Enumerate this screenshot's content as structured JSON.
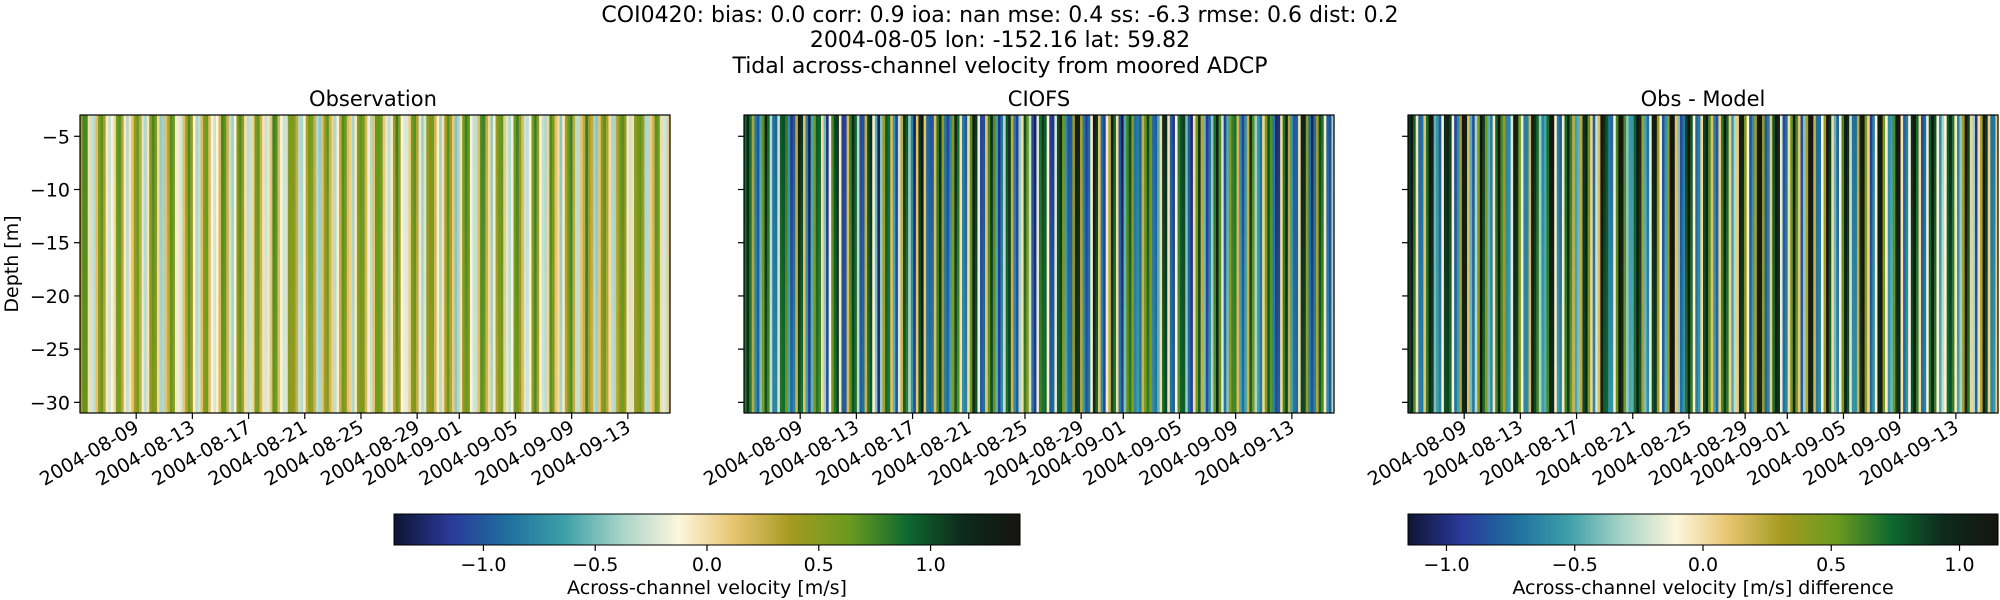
{
  "header": {
    "line1": "COI0420: bias: 0.0  corr: 0.9  ioa: nan  mse: 0.4  ss: -6.3  rmse: 0.6  dist: 0.2",
    "line2": "2004-08-05 lon: -152.16 lat: 59.82",
    "line3": "Tidal across-channel velocity from moored ADCP"
  },
  "colors": {
    "colormap_stops": [
      "#0e1433",
      "#2a3a9a",
      "#1f6f9e",
      "#3ea0a8",
      "#a8d4c8",
      "#fdf6dc",
      "#e6c46e",
      "#a39a22",
      "#6b9a1e",
      "#0f6a30",
      "#0d2a1c",
      "#15150f"
    ]
  },
  "chart_data": [
    {
      "type": "heatmap",
      "title": "Observation",
      "ylabel": "Depth [m]",
      "xlabel": "",
      "ylim": [
        -31,
        -3
      ],
      "yticks": [
        "−5",
        "−10",
        "−15",
        "−20",
        "−25",
        "−30"
      ],
      "xticks": [
        "2004-08-09",
        "2004-08-13",
        "2004-08-17",
        "2004-08-21",
        "2004-08-25",
        "2004-08-29",
        "2004-09-01",
        "2004-09-05",
        "2004-09-09",
        "2004-09-13"
      ],
      "x_range": [
        "2004-08-05",
        "2004-09-16"
      ],
      "value_range": [
        -0.6,
        0.7
      ],
      "value_bias": 0.12,
      "description": "tidal oscillation of across-channel velocity, mostly weak"
    },
    {
      "type": "heatmap",
      "title": "CIOFS",
      "ylabel": "",
      "xlabel": "",
      "ylim": [
        -31,
        -3
      ],
      "yticks": [],
      "xticks": [
        "2004-08-09",
        "2004-08-13",
        "2004-08-17",
        "2004-08-21",
        "2004-08-25",
        "2004-08-29",
        "2004-09-01",
        "2004-09-05",
        "2004-09-09",
        "2004-09-13"
      ],
      "x_range": [
        "2004-08-05",
        "2004-09-16"
      ],
      "value_range": [
        -1.4,
        1.4
      ],
      "value_bias": 0.0,
      "description": "strong tidal oscillation"
    },
    {
      "type": "heatmap",
      "title": "Obs - Model",
      "ylabel": "",
      "xlabel": "",
      "ylim": [
        -31,
        -3
      ],
      "yticks": [],
      "xticks": [
        "2004-08-09",
        "2004-08-13",
        "2004-08-17",
        "2004-08-21",
        "2004-08-25",
        "2004-08-29",
        "2004-09-01",
        "2004-09-05",
        "2004-09-09",
        "2004-09-13"
      ],
      "x_range": [
        "2004-08-05",
        "2004-09-16"
      ],
      "value_range": [
        -1.2,
        1.2
      ],
      "value_bias": 0.2,
      "description": "difference field"
    }
  ],
  "colorbars": [
    {
      "label": "Across-channel velocity [m/s]",
      "range": [
        -1.4,
        1.4
      ],
      "ticks": [
        {
          "value": -1.0,
          "label": "−1.0"
        },
        {
          "value": -0.5,
          "label": "−0.5"
        },
        {
          "value": 0.0,
          "label": "0.0"
        },
        {
          "value": 0.5,
          "label": "0.5"
        },
        {
          "value": 1.0,
          "label": "1.0"
        }
      ]
    },
    {
      "label": "Across-channel velocity [m/s] difference",
      "range": [
        -1.15,
        1.15
      ],
      "ticks": [
        {
          "value": -1.0,
          "label": "−1.0"
        },
        {
          "value": -0.5,
          "label": "−0.5"
        },
        {
          "value": 0.0,
          "label": "0.0"
        },
        {
          "value": 0.5,
          "label": "0.5"
        },
        {
          "value": 1.0,
          "label": "1.0"
        }
      ]
    }
  ]
}
